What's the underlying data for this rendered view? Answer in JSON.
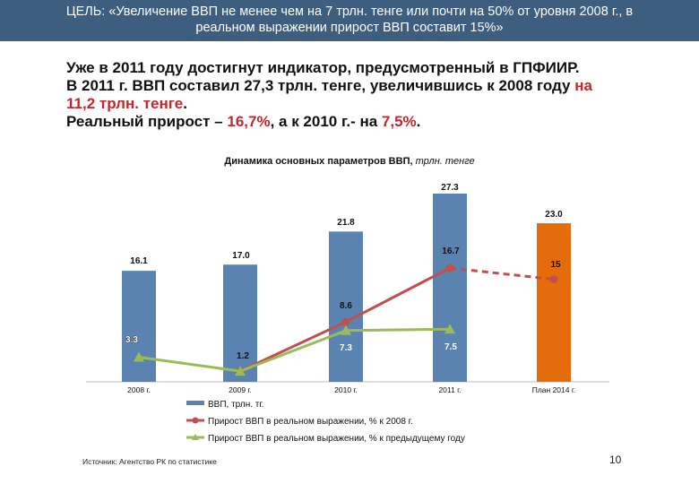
{
  "header": {
    "line1": "ЦЕЛЬ: «Увеличение ВВП не менее чем на 7 трлн. тенге или почти на 50% от уровня 2008 г., в",
    "line2": "реальном выражении прирост ВВП составит 15%»"
  },
  "lead": {
    "l1": "Уже в 2011 году достигнут индикатор, предусмотренный в ГПФИИР.",
    "l2a": "В 2011 г. ВВП составил 27,3 трлн. тенге, увеличившись к 2008 году ",
    "l2b": "на",
    "l3a": "11,2 трлн. тенге",
    "l3b": ".",
    "l4a": "Реальный прирост – ",
    "l4b": "16,7%",
    "l4c": ", а к 2010 г.- на ",
    "l4d": "7,5%",
    "l4e": "."
  },
  "chart_title": {
    "bold": "Динамика основных параметров ВВП, ",
    "italic": "трлн. тенге"
  },
  "colors": {
    "bar": "#5b83b1",
    "bar_plan": "#e46c0a",
    "red_line": "#c0504d",
    "green_line": "#9bbb59",
    "header_bg": "#3d5e7f"
  },
  "chart_data": {
    "type": "bar+line",
    "title": "Динамика основных параметров ВВП, трлн. тенге",
    "categories": [
      "2008 г.",
      "2009 г.",
      "2010 г.",
      "2011 г.",
      "План 2014 г."
    ],
    "series": [
      {
        "name": "ВВП, трлн. тг.",
        "kind": "bar",
        "values": [
          16.1,
          17.0,
          21.8,
          27.3,
          23.0
        ],
        "labels": [
          "16.1",
          "17.0",
          "21.8",
          "27.3",
          "23.0"
        ]
      },
      {
        "name": "Прирост ВВП в реальном выражении, % к 2008 г.",
        "kind": "line",
        "values": [
          null,
          1.2,
          8.6,
          16.7,
          15
        ],
        "labels": [
          "",
          "1.2",
          "8.6",
          "16.7",
          "15"
        ],
        "dashed_from_index": 3
      },
      {
        "name": "Прирост ВВП в реальном выражении, % к предыдущему году",
        "kind": "line",
        "values": [
          3.3,
          1.2,
          7.3,
          7.5,
          null
        ],
        "labels": [
          "3.3",
          "",
          "7.3",
          "7.5",
          ""
        ]
      }
    ],
    "legend": [
      "ВВП, трлн. тг.",
      "Прирост ВВП в реальном выражении, % к 2008 г.",
      "Прирост ВВП в реальном выражении, % к предыдущему году"
    ],
    "legend_position": "bottom",
    "ylim_bars": [
      0,
      27.3
    ],
    "ylim_lines": [
      0,
      16.7
    ]
  },
  "source": "Источник: Агентство РК по статистике",
  "page_number": "10"
}
